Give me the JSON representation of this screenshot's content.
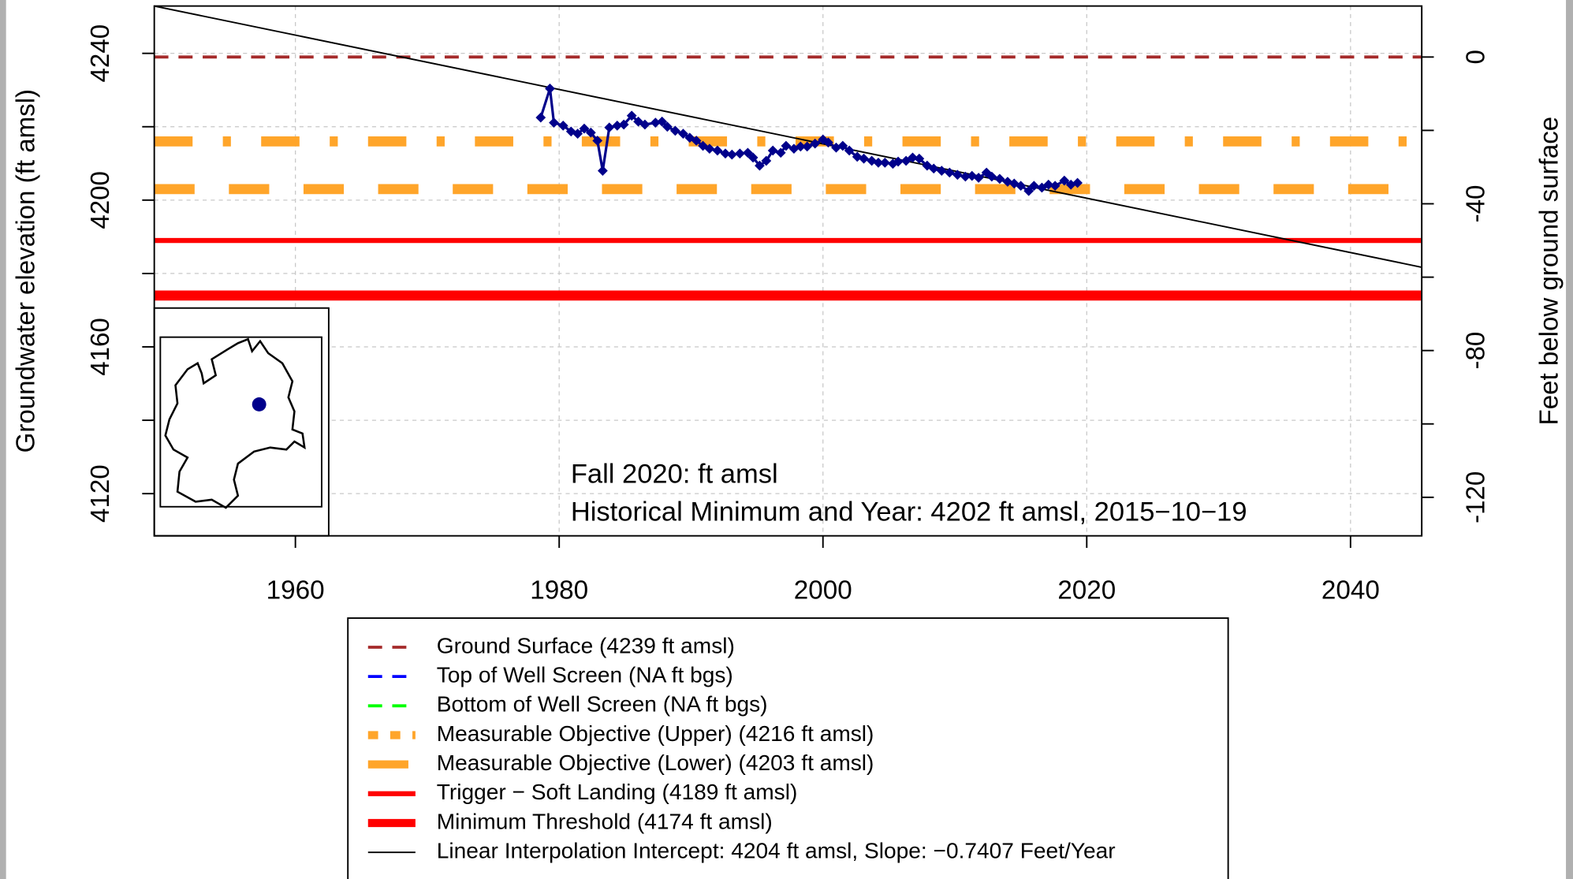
{
  "chart_data": {
    "type": "line",
    "y_label": "Groundwater elevation (ft amsl)",
    "y2_label": "Feet below ground surface",
    "xlim": [
      1949.3,
      2045.4
    ],
    "xticks": [
      1960,
      1980,
      2000,
      2020,
      2040
    ],
    "ylim": [
      4108.5,
      4252.9
    ],
    "yticks": [
      4120,
      4160,
      4200,
      4240
    ],
    "yminor_ticks": [
      4140,
      4180,
      4220
    ],
    "y2lim": [
      -130.5,
      13.9
    ],
    "y2ticks": [
      -120,
      -80,
      -40,
      0
    ],
    "y2minor_ticks": [
      -100,
      -60,
      -20
    ],
    "grid": true,
    "series": [
      {
        "color": "#00008B",
        "marker": "diamond",
        "x": [
          1978.6,
          1979.3,
          1979.6,
          1980.3,
          1980.9,
          1981.4,
          1981.9,
          1982.4,
          1982.9,
          1983.3,
          1983.8,
          1984.4,
          1984.9,
          1985.5,
          1986.0,
          1986.5,
          1987.3,
          1987.8,
          1988.2,
          1988.8,
          1989.4,
          1989.9,
          1990.4,
          1990.9,
          1991.4,
          1992.0,
          1992.6,
          1993.1,
          1993.7,
          1994.3,
          1994.7,
          1995.2,
          1995.7,
          1996.2,
          1996.8,
          1997.2,
          1997.8,
          1998.3,
          1998.8,
          1999.4,
          2000.0,
          2000.4,
          2001.0,
          2001.5,
          2002.0,
          2002.6,
          2003.1,
          2003.7,
          2004.2,
          2004.7,
          2005.3,
          2005.7,
          2006.3,
          2006.8,
          2007.3,
          2007.9,
          2008.4,
          2009.0,
          2009.6,
          2010.2,
          2010.8,
          2011.3,
          2011.8,
          2012.4,
          2012.8,
          2013.4,
          2014.0,
          2014.5,
          2015.0,
          2015.6,
          2016.0,
          2016.6,
          2017.1,
          2017.6,
          2018.3,
          2018.8,
          2019.3
        ],
        "values": [
          4222.5,
          4230.4,
          4221.1,
          4220.3,
          4218.7,
          4218.1,
          4219.5,
          4218.4,
          4216.2,
          4208.0,
          4219.8,
          4220.3,
          4220.6,
          4223.0,
          4221.4,
          4220.6,
          4221.1,
          4221.4,
          4220.0,
          4218.9,
          4218.1,
          4217.0,
          4216.2,
          4214.8,
          4214.0,
          4213.5,
          4212.7,
          4212.4,
          4212.7,
          4212.9,
          4211.6,
          4209.4,
          4210.7,
          4213.5,
          4212.9,
          4214.8,
          4214.0,
          4214.6,
          4214.6,
          4215.4,
          4216.5,
          4215.7,
          4214.3,
          4214.8,
          4213.5,
          4211.8,
          4211.3,
          4210.7,
          4210.2,
          4210.2,
          4209.9,
          4210.5,
          4210.7,
          4211.6,
          4211.3,
          4209.4,
          4208.6,
          4208.0,
          4207.5,
          4206.9,
          4206.4,
          4206.6,
          4206.1,
          4207.5,
          4206.4,
          4205.8,
          4205.0,
          4204.5,
          4203.9,
          4202.5,
          4203.9,
          4203.4,
          4204.2,
          4203.9,
          4205.3,
          4204.2,
          4204.7
        ]
      }
    ],
    "lines": [
      {
        "name": "Ground Surface (4239 ft amsl)",
        "value": 4239,
        "color": "#A52A2A",
        "style": "dashed"
      },
      {
        "name": "Top of Well Screen (NA ft bgs)",
        "value": null,
        "color": "#0000FF",
        "style": "dashed"
      },
      {
        "name": "Bottom of Well Screen (NA ft bgs)",
        "value": null,
        "color": "#00FF00",
        "style": "dashed"
      },
      {
        "name": "Measurable Objective (Upper) (4216 ft amsl)",
        "value": 4216,
        "color": "#FFA52A",
        "style": "dotdash-thick"
      },
      {
        "name": "Measurable Objective (Lower) (4203 ft amsl)",
        "value": 4203,
        "color": "#FFA52A",
        "style": "longdash-thick"
      },
      {
        "name": "Trigger − Soft Landing (4189 ft amsl)",
        "value": 4189,
        "color": "#FF0000",
        "style": "solid-medium"
      },
      {
        "name": "Minimum Threshold (4174 ft amsl)",
        "value": 4174,
        "color": "#FF0000",
        "style": "solid-thick"
      },
      {
        "name": "Linear Interpolation Intercept: 4204 ft amsl, Slope: −0.7407 Feet/Year",
        "color": "#000000",
        "style": "solid-thin",
        "x": [
          1949.3,
          2045.4
        ],
        "values": [
          4252.9,
          4181.7
        ]
      }
    ],
    "annotations": [
      "Fall 2020:   ft amsl",
      "Historical Minimum and Year:  4202 ft amsl,  2015−10−19"
    ]
  }
}
